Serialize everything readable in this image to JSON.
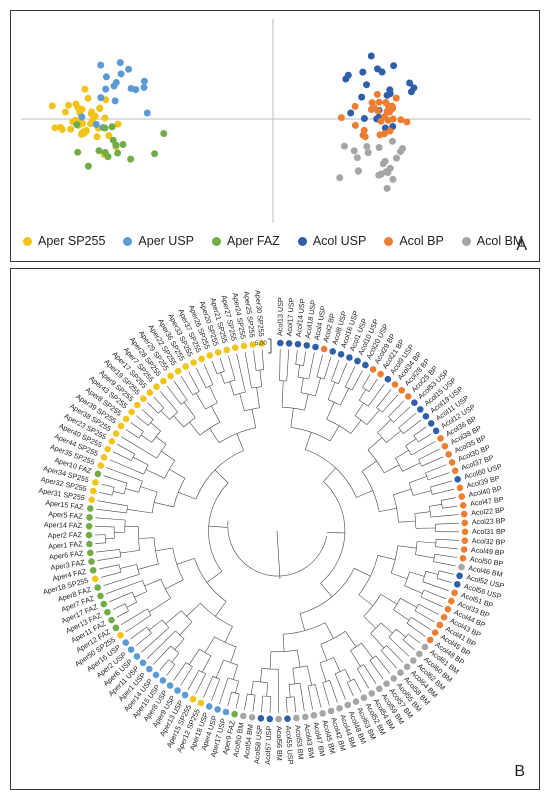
{
  "panel_a": {
    "letter": "A",
    "legend": [
      {
        "label": "Aper SP255",
        "color": "#f2c318"
      },
      {
        "label": "Aper USP",
        "color": "#5b9bd5"
      },
      {
        "label": "Aper FAZ",
        "color": "#70ad47"
      },
      {
        "label": "Acol USP",
        "color": "#2e5fa8"
      },
      {
        "label": "Acol BP",
        "color": "#ed7d31"
      },
      {
        "label": "Acol BM",
        "color": "#a5a5a5"
      }
    ]
  },
  "panel_b": {
    "letter": "B",
    "scale_label": "5.00",
    "colors": {
      "SP255": "#f2c318",
      "AUSP": "#5b9bd5",
      "FAZ": "#70ad47",
      "CUSP": "#2e5fa8",
      "BP": "#ed7d31",
      "BM": "#a5a5a5"
    },
    "tips": [
      {
        "label": "Acol13 USP",
        "group": "CUSP"
      },
      {
        "label": "Acol17 USP",
        "group": "CUSP"
      },
      {
        "label": "Acol14 USP",
        "group": "CUSP"
      },
      {
        "label": "Acol18 USP",
        "group": "CUSP"
      },
      {
        "label": "Acol4 USP",
        "group": "CUSP"
      },
      {
        "label": "Acol2 BP",
        "group": "BP"
      },
      {
        "label": "Acol8 USP",
        "group": "CUSP"
      },
      {
        "label": "Acol16 USP",
        "group": "CUSP"
      },
      {
        "label": "Acol1 USP",
        "group": "CUSP"
      },
      {
        "label": "Acol10 USP",
        "group": "CUSP"
      },
      {
        "label": "Acol20 USP",
        "group": "CUSP"
      },
      {
        "label": "Acol29 BP",
        "group": "BP"
      },
      {
        "label": "Acol21 BP",
        "group": "BP"
      },
      {
        "label": "Acol9 USP",
        "group": "CUSP"
      },
      {
        "label": "Acol34 BP",
        "group": "BP"
      },
      {
        "label": "Acol28 BP",
        "group": "BP"
      },
      {
        "label": "Acol25 BP",
        "group": "BP"
      },
      {
        "label": "Acol53 USP",
        "group": "CUSP"
      },
      {
        "label": "Acol15 USP",
        "group": "CUSP"
      },
      {
        "label": "Acol19 USP",
        "group": "CUSP"
      },
      {
        "label": "Acol11 USP",
        "group": "CUSP"
      },
      {
        "label": "Acol12 USP",
        "group": "CUSP"
      },
      {
        "label": "Acol36 BP",
        "group": "BP"
      },
      {
        "label": "Acol38 BP",
        "group": "BP"
      },
      {
        "label": "Acol35 BP",
        "group": "BP"
      },
      {
        "label": "Acol30 BP",
        "group": "BP"
      },
      {
        "label": "Acol37 BP",
        "group": "BP"
      },
      {
        "label": "Acol60 USP",
        "group": "CUSP"
      },
      {
        "label": "Acol39 BP",
        "group": "BP"
      },
      {
        "label": "Acol40 BP",
        "group": "BP"
      },
      {
        "label": "Acol47 BP",
        "group": "BP"
      },
      {
        "label": "Acol22 BP",
        "group": "BP"
      },
      {
        "label": "Acol23 BP",
        "group": "BP"
      },
      {
        "label": "Acol31 BP",
        "group": "BP"
      },
      {
        "label": "Acol32 BP",
        "group": "BP"
      },
      {
        "label": "Acol49 BP",
        "group": "BP"
      },
      {
        "label": "Acol50 BP",
        "group": "BP"
      },
      {
        "label": "Acol46 BM",
        "group": "BM"
      },
      {
        "label": "Acol52 USP",
        "group": "CUSP"
      },
      {
        "label": "Acol56 USP",
        "group": "CUSP"
      },
      {
        "label": "Acol51 BP",
        "group": "BP"
      },
      {
        "label": "Acol33 BP",
        "group": "BP"
      },
      {
        "label": "Acol44 BP",
        "group": "BP"
      },
      {
        "label": "Acol43 BP",
        "group": "BP"
      },
      {
        "label": "Acol41 BP",
        "group": "BP"
      },
      {
        "label": "Acol45 BP",
        "group": "BP"
      },
      {
        "label": "Acol48 BP",
        "group": "BP"
      },
      {
        "label": "Acol61 BM",
        "group": "BM"
      },
      {
        "label": "Acol60 BM",
        "group": "BM"
      },
      {
        "label": "Acol62 BM",
        "group": "BM"
      },
      {
        "label": "Acol64 BM",
        "group": "BM"
      },
      {
        "label": "Acol58 BM",
        "group": "BM"
      },
      {
        "label": "Acol55 BM",
        "group": "BM"
      },
      {
        "label": "Acol57 BM",
        "group": "BM"
      },
      {
        "label": "Acol59 BM",
        "group": "BM"
      },
      {
        "label": "Acol54 BM",
        "group": "BM"
      },
      {
        "label": "Acol52 BM",
        "group": "BM"
      },
      {
        "label": "Acol63 BM",
        "group": "BM"
      },
      {
        "label": "Acol48 BM",
        "group": "BM"
      },
      {
        "label": "Acol44 BM",
        "group": "BM"
      },
      {
        "label": "Acol42 BM",
        "group": "BM"
      },
      {
        "label": "Acol45 BM",
        "group": "BM"
      },
      {
        "label": "Acol47 BM",
        "group": "BM"
      },
      {
        "label": "Acol43 BM",
        "group": "BM"
      },
      {
        "label": "Acol53 BM",
        "group": "BM"
      },
      {
        "label": "Acol55 USP",
        "group": "CUSP"
      },
      {
        "label": "Acol56 BM",
        "group": "BM"
      },
      {
        "label": "Acol57 USP",
        "group": "CUSP"
      },
      {
        "label": "Acol58 USP",
        "group": "CUSP"
      },
      {
        "label": "Acol54 BM",
        "group": "BM"
      },
      {
        "label": "Acol50 BM",
        "group": "BM"
      },
      {
        "label": "Aper9 FAZ",
        "group": "FAZ"
      },
      {
        "label": "Aper17 USP",
        "group": "AUSP"
      },
      {
        "label": "Aper4 USP",
        "group": "AUSP"
      },
      {
        "label": "Aper18 USP",
        "group": "AUSP"
      },
      {
        "label": "Aper12 SP255",
        "group": "SP255"
      },
      {
        "label": "Aper15 SP255",
        "group": "SP255"
      },
      {
        "label": "Aper13 USP",
        "group": "AUSP"
      },
      {
        "label": "Aper9 USP",
        "group": "AUSP"
      },
      {
        "label": "Aper8 USP",
        "group": "AUSP"
      },
      {
        "label": "Aper15 USP",
        "group": "AUSP"
      },
      {
        "label": "Aper14 USP",
        "group": "AUSP"
      },
      {
        "label": "Aper1 USP",
        "group": "AUSP"
      },
      {
        "label": "Aper11 USP",
        "group": "AUSP"
      },
      {
        "label": "Aper6 USP",
        "group": "AUSP"
      },
      {
        "label": "Aper2 USP",
        "group": "AUSP"
      },
      {
        "label": "Aper16 USP",
        "group": "AUSP"
      },
      {
        "label": "Aper50 SP255",
        "group": "SP255"
      },
      {
        "label": "Aper12 FAZ",
        "group": "FAZ"
      },
      {
        "label": "Aper11 FAZ",
        "group": "FAZ"
      },
      {
        "label": "Aper13 FAZ",
        "group": "FAZ"
      },
      {
        "label": "Aper17 FAZ",
        "group": "FAZ"
      },
      {
        "label": "Aper7 FAZ",
        "group": "FAZ"
      },
      {
        "label": "Aper8 FAZ",
        "group": "FAZ"
      },
      {
        "label": "Aper18 SP255",
        "group": "SP255"
      },
      {
        "label": "Aper4 FAZ",
        "group": "FAZ"
      },
      {
        "label": "Aper3 FAZ",
        "group": "FAZ"
      },
      {
        "label": "Aper6 FAZ",
        "group": "FAZ"
      },
      {
        "label": "Aper1 FAZ",
        "group": "FAZ"
      },
      {
        "label": "Aper2 FAZ",
        "group": "FAZ"
      },
      {
        "label": "Aper14 FAZ",
        "group": "FAZ"
      },
      {
        "label": "Aper5 FAZ",
        "group": "FAZ"
      },
      {
        "label": "Aper15 FAZ",
        "group": "FAZ"
      },
      {
        "label": "Aper31 SP255",
        "group": "SP255"
      },
      {
        "label": "Aper32 SP255",
        "group": "SP255"
      },
      {
        "label": "Aper34 SP255",
        "group": "SP255"
      },
      {
        "label": "Aper10 FAZ",
        "group": "FAZ"
      },
      {
        "label": "Aper35 SP255",
        "group": "SP255"
      },
      {
        "label": "Aper44 SP255",
        "group": "SP255"
      },
      {
        "label": "Aper40 SP255",
        "group": "SP255"
      },
      {
        "label": "Aper23 SP255",
        "group": "SP255"
      },
      {
        "label": "Aper38 SP255",
        "group": "SP255"
      },
      {
        "label": "Aper39 SP255",
        "group": "SP255"
      },
      {
        "label": "Aper8 SP255",
        "group": "SP255"
      },
      {
        "label": "Aper43 SP255",
        "group": "SP255"
      },
      {
        "label": "Aper9 SP255",
        "group": "SP255"
      },
      {
        "label": "Aper19 SP255",
        "group": "SP255"
      },
      {
        "label": "Aper17 SP255",
        "group": "SP255"
      },
      {
        "label": "Aper7 SP255",
        "group": "SP255"
      },
      {
        "label": "Aper28 SP255",
        "group": "SP255"
      },
      {
        "label": "Aper29 SP255",
        "group": "SP255"
      },
      {
        "label": "Aper22 SP255",
        "group": "SP255"
      },
      {
        "label": "Aper36 SP255",
        "group": "SP255"
      },
      {
        "label": "Aper33 SP255",
        "group": "SP255"
      },
      {
        "label": "Aper37 SP255",
        "group": "SP255"
      },
      {
        "label": "Aper26 SP255",
        "group": "SP255"
      },
      {
        "label": "Aper20 SP255",
        "group": "SP255"
      },
      {
        "label": "Aper21 SP255",
        "group": "SP255"
      },
      {
        "label": "Aper27 SP255",
        "group": "SP255"
      },
      {
        "label": "Aper24 SP255",
        "group": "SP255"
      },
      {
        "label": "Aper25 SP255",
        "group": "SP255"
      },
      {
        "label": "Aper30 SP255",
        "group": "SP255"
      }
    ]
  }
}
